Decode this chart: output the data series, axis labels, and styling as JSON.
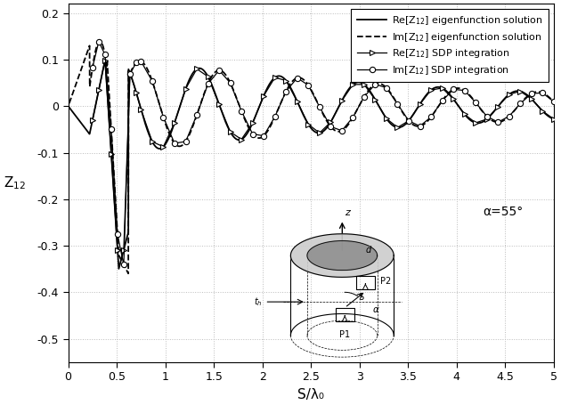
{
  "title": "",
  "xlabel": "S/λ₀",
  "ylabel": "Z$_{12}$",
  "xlim": [
    0.0,
    5.0
  ],
  "ylim": [
    -0.55,
    0.22
  ],
  "yticks": [
    -0.5,
    -0.4,
    -0.3,
    -0.2,
    -0.1,
    0.0,
    0.1,
    0.2
  ],
  "xticks": [
    0.0,
    0.5,
    1.0,
    1.5,
    2.0,
    2.5,
    3.0,
    3.5,
    4.0,
    4.5,
    5.0
  ],
  "legend_labels": [
    "Re[Z$_{12}$] eigenfunction solution",
    "Im[Z$_{12}$] eigenfunction solution",
    "Re[Z$_{12}$] SDP integration",
    "Im[Z$_{12}$] SDP integration"
  ],
  "alpha_label": "α=55°",
  "background_color": "#ffffff",
  "grid_color": "#aaaaaa",
  "line_color": "#000000"
}
